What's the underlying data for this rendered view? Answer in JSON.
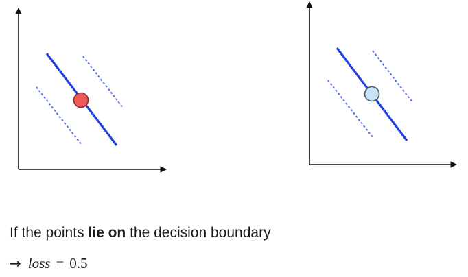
{
  "diagrams": [
    {
      "name": "left",
      "point_color": "#ee5a5a",
      "point_stroke": "#8a2a2a"
    },
    {
      "name": "right",
      "point_color": "#c9e4f5",
      "point_stroke": "#4a5560"
    }
  ],
  "colors": {
    "boundary": "#1f3fe0",
    "margin": "#4d6ef0",
    "axis": "#111111"
  },
  "caption": {
    "prefix": "If the points ",
    "bold": "lie on",
    "suffix": " the decision boundary"
  },
  "formula": {
    "arrow": "→",
    "variable": "loss",
    "equals": "=",
    "value": "0.5"
  }
}
